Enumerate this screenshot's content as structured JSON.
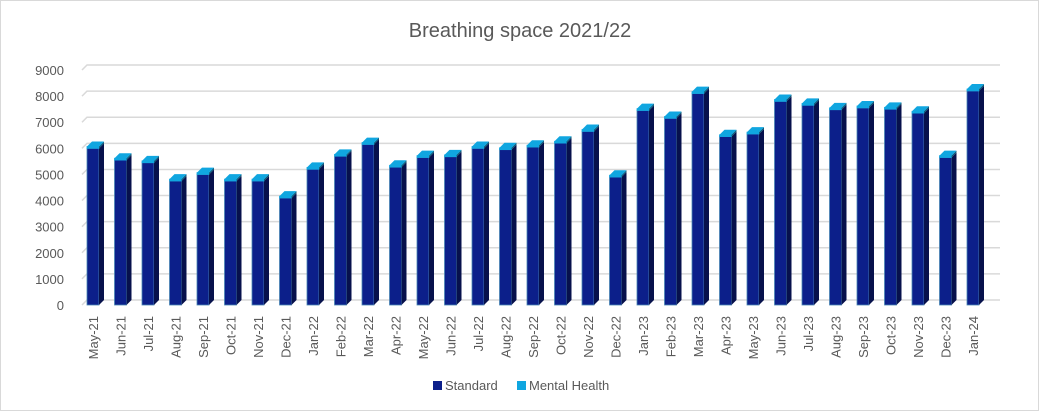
{
  "chart_data": {
    "type": "bar",
    "stacked": true,
    "style": "3d-column",
    "title": "Breathing space 2021/22",
    "xlabel": "",
    "ylabel": "",
    "ylim": [
      0,
      9000
    ],
    "yticks": [
      0,
      1000,
      2000,
      3000,
      4000,
      5000,
      6000,
      7000,
      8000,
      9000
    ],
    "grid": true,
    "legend_position": "bottom",
    "categories": [
      "May-21",
      "Jun-21",
      "Jul-21",
      "Aug-21",
      "Sep-21",
      "Oct-21",
      "Nov-21",
      "Dec-21",
      "Jan-22",
      "Feb-22",
      "Mar-22",
      "Apr-22",
      "May-22",
      "Jun-22",
      "Jul-22",
      "Aug-22",
      "Sep-22",
      "Oct-22",
      "Nov-22",
      "Dec-22",
      "Jan-23",
      "Feb-23",
      "Mar-23",
      "Apr-23",
      "May-23",
      "Jun-23",
      "Jul-23",
      "Aug-23",
      "Sep-23",
      "Oct-23",
      "Nov-23",
      "Dec-23",
      "Jan-24"
    ],
    "series": [
      {
        "name": "Standard",
        "color": "#0c1f8a",
        "values": [
          6000,
          5550,
          5450,
          4750,
          5000,
          4750,
          4750,
          4100,
          5200,
          5700,
          6150,
          5280,
          5650,
          5680,
          6000,
          5950,
          6050,
          6200,
          6650,
          4900,
          7450,
          7150,
          8100,
          6450,
          6550,
          7800,
          7650,
          7480,
          7550,
          7500,
          7350,
          5650,
          8200
        ]
      },
      {
        "name": "Mental Health",
        "color": "#10a6e0",
        "values": [
          70,
          70,
          70,
          70,
          70,
          70,
          70,
          70,
          70,
          70,
          70,
          70,
          70,
          70,
          70,
          70,
          70,
          70,
          70,
          70,
          70,
          70,
          70,
          70,
          70,
          70,
          70,
          70,
          70,
          70,
          70,
          70,
          70
        ]
      }
    ]
  }
}
